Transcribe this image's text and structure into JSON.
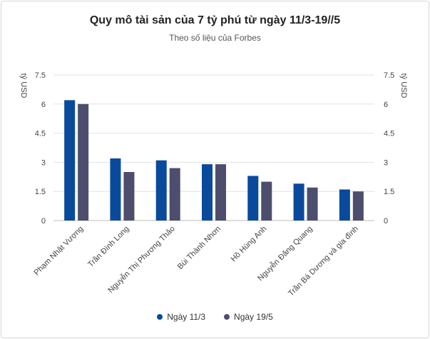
{
  "chart_data": {
    "type": "bar",
    "title": "Quy mô tài sản của 7 tỷ phú từ ngày 11/3-19//5",
    "subtitle": "Theo số liệu của Forbes",
    "ylabel_left": "tỷ USD",
    "ylabel_right": "tỷ USD",
    "ylim": [
      0,
      7.5
    ],
    "yticks": [
      "0",
      "1.5",
      "3",
      "4.5",
      "6",
      "7.5"
    ],
    "categories": [
      "Phạm Nhật Vượng",
      "Trần Đình Long",
      "Nguyễn Thị Phương Thảo",
      "Bùi Thành Nhơn",
      "Hồ Hùng Anh",
      "Nguyễn Đăng Quang",
      "Trần Bá Dương và gia đình"
    ],
    "series": [
      {
        "name": "Ngày 11/3",
        "color": "#0a4a9c",
        "values": [
          6.2,
          3.2,
          3.1,
          2.9,
          2.3,
          1.9,
          1.6
        ]
      },
      {
        "name": "Ngày 19/5",
        "color": "#4d4d6e",
        "values": [
          6.0,
          2.5,
          2.7,
          2.9,
          2.0,
          1.7,
          1.5
        ]
      }
    ],
    "grid": true,
    "legend_position": "bottom"
  }
}
